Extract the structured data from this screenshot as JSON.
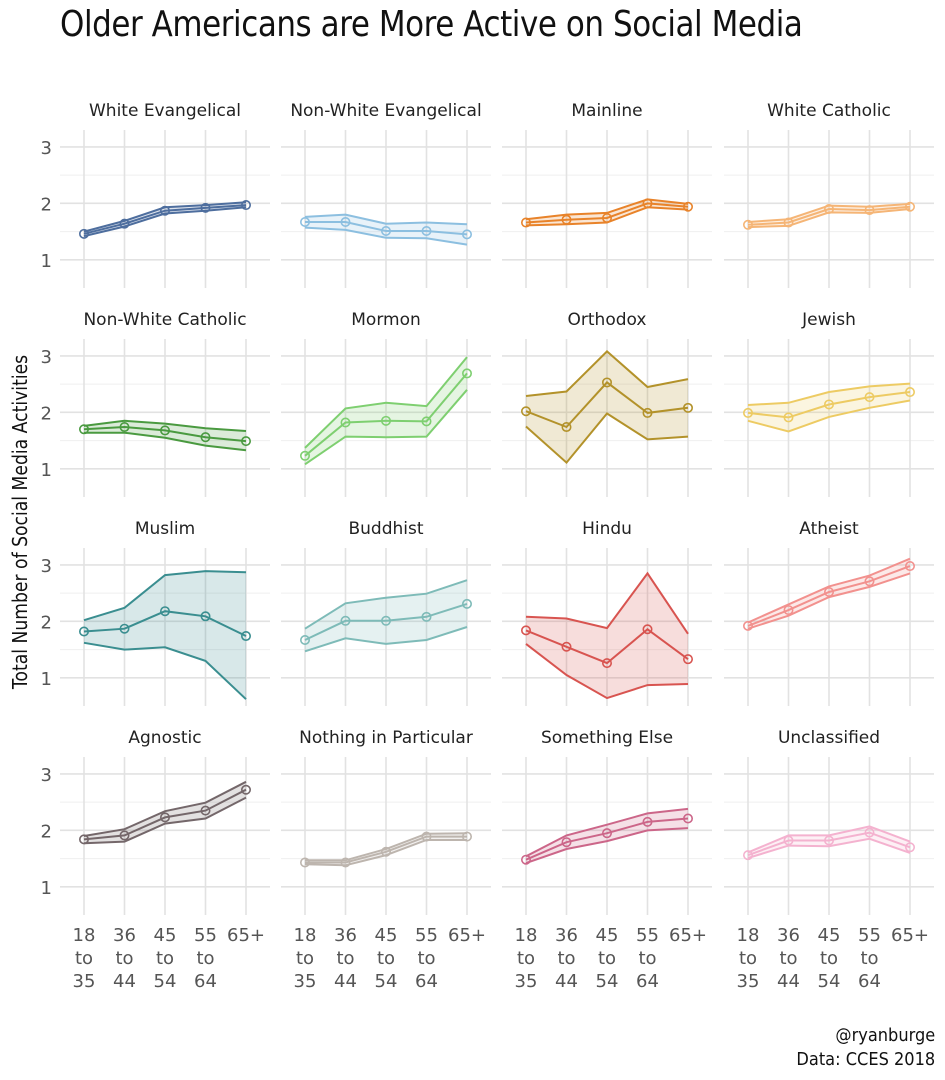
{
  "title": "Older Americans are More Active on Social Media",
  "caption": {
    "author": "@ryanburge",
    "source": "Data: CCES 2018"
  },
  "chart_data": {
    "type": "line",
    "title": "Older Americans are More Active on Social Media",
    "xlabel": "",
    "ylabel": "Total Number of Social Media Activities",
    "ylim": [
      0.5,
      3.3
    ],
    "y_ticks": [
      "1",
      "2",
      "3"
    ],
    "categories": [
      [
        "18",
        "to",
        "35"
      ],
      [
        "36",
        "to",
        "44"
      ],
      [
        "45",
        "to",
        "54"
      ],
      [
        "55",
        "to",
        "64"
      ],
      [
        "65+"
      ]
    ],
    "panels": [
      {
        "name": "White Evangelical",
        "color": "#4E6E9E",
        "values": [
          1.46,
          1.64,
          1.87,
          1.92,
          1.97
        ],
        "lower": [
          1.42,
          1.59,
          1.82,
          1.87,
          1.93
        ],
        "upper": [
          1.5,
          1.69,
          1.93,
          1.97,
          2.02
        ]
      },
      {
        "name": "Non-White Evangelical",
        "color": "#8CBFE0",
        "values": [
          1.67,
          1.67,
          1.51,
          1.51,
          1.45
        ],
        "lower": [
          1.57,
          1.53,
          1.39,
          1.38,
          1.27
        ],
        "upper": [
          1.76,
          1.8,
          1.64,
          1.66,
          1.63
        ]
      },
      {
        "name": "Mainline",
        "color": "#E8832A",
        "values": [
          1.66,
          1.71,
          1.74,
          2.0,
          1.94
        ],
        "lower": [
          1.61,
          1.63,
          1.66,
          1.93,
          1.89
        ],
        "upper": [
          1.72,
          1.8,
          1.83,
          2.07,
          1.99
        ]
      },
      {
        "name": "White Catholic",
        "color": "#F5B576",
        "values": [
          1.62,
          1.66,
          1.9,
          1.88,
          1.94
        ],
        "lower": [
          1.58,
          1.6,
          1.84,
          1.83,
          1.9
        ],
        "upper": [
          1.67,
          1.72,
          1.96,
          1.94,
          1.99
        ]
      },
      {
        "name": "Non-White Catholic",
        "color": "#4A9A40",
        "values": [
          1.7,
          1.74,
          1.68,
          1.56,
          1.49
        ],
        "lower": [
          1.64,
          1.64,
          1.55,
          1.41,
          1.33
        ],
        "upper": [
          1.76,
          1.85,
          1.8,
          1.72,
          1.67
        ]
      },
      {
        "name": "Mormon",
        "color": "#7ECF70",
        "values": [
          1.23,
          1.82,
          1.85,
          1.84,
          2.69
        ],
        "lower": [
          1.08,
          1.57,
          1.56,
          1.57,
          2.4
        ],
        "upper": [
          1.37,
          2.07,
          2.17,
          2.11,
          2.98
        ]
      },
      {
        "name": "Orthodox",
        "color": "#B3922A",
        "values": [
          2.02,
          1.74,
          2.53,
          1.99,
          2.08
        ],
        "lower": [
          1.75,
          1.11,
          1.98,
          1.52,
          1.57
        ],
        "upper": [
          2.29,
          2.37,
          3.08,
          2.45,
          2.59
        ]
      },
      {
        "name": "Jewish",
        "color": "#EDCB63",
        "values": [
          1.99,
          1.91,
          2.14,
          2.27,
          2.36
        ],
        "lower": [
          1.85,
          1.66,
          1.92,
          2.08,
          2.21
        ],
        "upper": [
          2.13,
          2.17,
          2.36,
          2.46,
          2.51
        ]
      },
      {
        "name": "Muslim",
        "color": "#3A8E90",
        "values": [
          1.82,
          1.87,
          2.18,
          2.09,
          1.74
        ],
        "lower": [
          1.62,
          1.5,
          1.54,
          1.3,
          0.62
        ],
        "upper": [
          2.02,
          2.24,
          2.82,
          2.89,
          2.87
        ]
      },
      {
        "name": "Buddhist",
        "color": "#7EBBB8",
        "values": [
          1.67,
          2.01,
          2.01,
          2.08,
          2.31
        ],
        "lower": [
          1.47,
          1.7,
          1.6,
          1.67,
          1.9
        ],
        "upper": [
          1.87,
          2.32,
          2.42,
          2.49,
          2.73
        ]
      },
      {
        "name": "Hindu",
        "color": "#D85450",
        "values": [
          1.84,
          1.55,
          1.26,
          1.86,
          1.33
        ],
        "lower": [
          1.6,
          1.05,
          0.64,
          0.87,
          0.89
        ],
        "upper": [
          2.08,
          2.05,
          1.88,
          2.85,
          1.78
        ]
      },
      {
        "name": "Atheist",
        "color": "#F2918E",
        "values": [
          1.92,
          2.2,
          2.52,
          2.71,
          2.98
        ],
        "lower": [
          1.87,
          2.1,
          2.43,
          2.61,
          2.85
        ],
        "upper": [
          1.98,
          2.3,
          2.62,
          2.81,
          3.11
        ]
      },
      {
        "name": "Agnostic",
        "color": "#74676A",
        "values": [
          1.84,
          1.91,
          2.23,
          2.35,
          2.72
        ],
        "lower": [
          1.77,
          1.8,
          2.12,
          2.21,
          2.58
        ],
        "upper": [
          1.9,
          2.02,
          2.34,
          2.49,
          2.86
        ]
      },
      {
        "name": "Nothing in Particular",
        "color": "#BDB5AE",
        "values": [
          1.43,
          1.43,
          1.62,
          1.89,
          1.89
        ],
        "lower": [
          1.4,
          1.38,
          1.56,
          1.83,
          1.83
        ],
        "upper": [
          1.47,
          1.47,
          1.67,
          1.94,
          1.95
        ]
      },
      {
        "name": "Something Else",
        "color": "#CC6689",
        "values": [
          1.48,
          1.79,
          1.95,
          2.15,
          2.21
        ],
        "lower": [
          1.42,
          1.67,
          1.81,
          2.0,
          2.04
        ],
        "upper": [
          1.54,
          1.91,
          2.1,
          2.3,
          2.38
        ]
      },
      {
        "name": "Unclassified",
        "color": "#F4B2CF",
        "values": [
          1.56,
          1.82,
          1.82,
          1.96,
          1.7
        ],
        "lower": [
          1.51,
          1.73,
          1.72,
          1.85,
          1.6
        ],
        "upper": [
          1.61,
          1.91,
          1.91,
          2.07,
          1.8
        ]
      }
    ]
  }
}
